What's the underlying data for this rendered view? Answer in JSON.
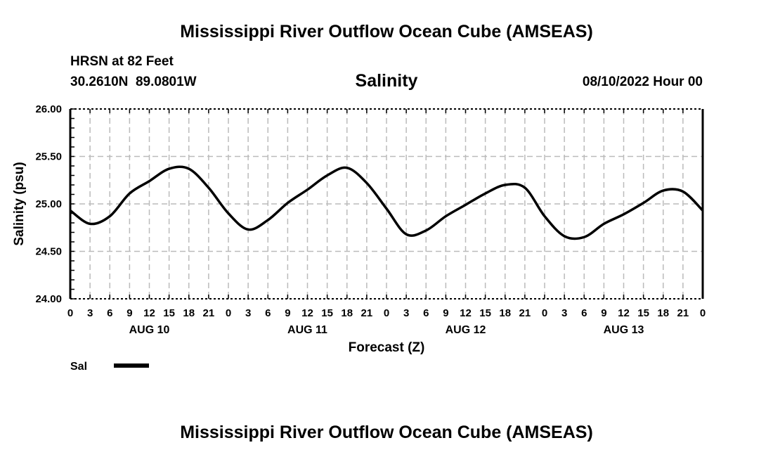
{
  "header": {
    "title": "Mississippi River Outflow Ocean Cube (AMSEAS)",
    "station": "HRSN at 82 Feet",
    "coords": "30.2610N  89.0801W",
    "variable": "Salinity",
    "datetime": "08/10/2022 Hour 00"
  },
  "footer": {
    "title": "Mississippi River Outflow Ocean Cube (AMSEAS)"
  },
  "chart_data": {
    "type": "line",
    "title": "Salinity",
    "xlabel": "Forecast (Z)",
    "ylabel": "Salinity (psu)",
    "ylim": [
      24.0,
      26.0
    ],
    "yticks": [
      "24.00",
      "24.50",
      "25.00",
      "25.50",
      "26.00"
    ],
    "xlim_hours": [
      0,
      96
    ],
    "xtick_labels": [
      "0",
      "3",
      "6",
      "9",
      "12",
      "15",
      "18",
      "21",
      "0",
      "3",
      "6",
      "9",
      "12",
      "15",
      "18",
      "21",
      "0",
      "3",
      "6",
      "9",
      "12",
      "15",
      "18",
      "21",
      "0",
      "3",
      "6",
      "9",
      "12",
      "15",
      "18",
      "21",
      "0"
    ],
    "day_labels": [
      "AUG 10",
      "AUG 11",
      "AUG 12",
      "AUG 13"
    ],
    "grid": true,
    "legend": {
      "placement": "bottom-left",
      "entries": [
        {
          "name": "Sal",
          "color": "#000000"
        }
      ]
    },
    "series": [
      {
        "name": "Sal",
        "x_hours": [
          0,
          3,
          6,
          9,
          12,
          15,
          18,
          21,
          24,
          27,
          30,
          33,
          36,
          39,
          42,
          45,
          48,
          51,
          54,
          57,
          60,
          63,
          66,
          69,
          72,
          75,
          78,
          81,
          84,
          87,
          90,
          93,
          96
        ],
        "values": [
          24.93,
          24.79,
          24.87,
          25.11,
          25.24,
          25.37,
          25.37,
          25.17,
          24.9,
          24.73,
          24.83,
          25.01,
          25.15,
          25.3,
          25.38,
          25.22,
          24.95,
          24.68,
          24.72,
          24.87,
          24.99,
          25.11,
          25.2,
          25.17,
          24.87,
          24.66,
          24.65,
          24.79,
          24.89,
          25.01,
          25.14,
          25.13,
          24.93
        ]
      }
    ]
  }
}
